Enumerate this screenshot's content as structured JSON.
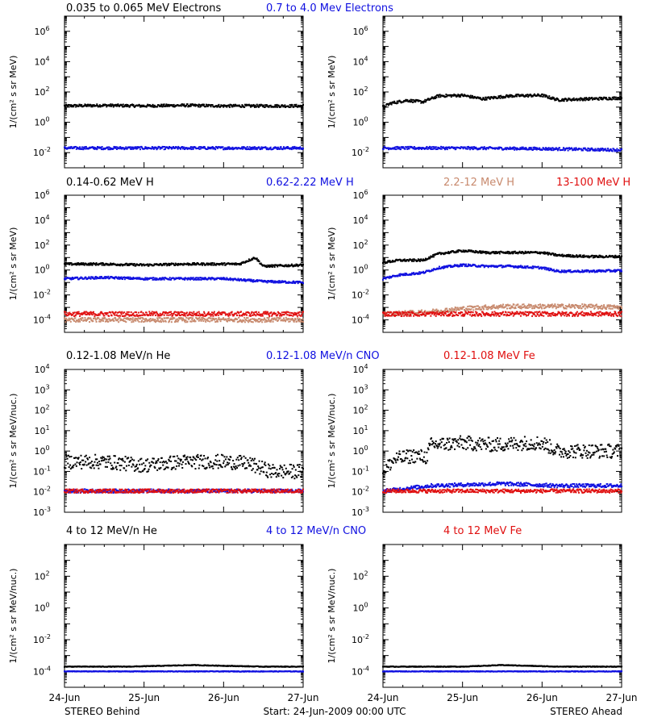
{
  "footer": {
    "left": "STEREO Behind",
    "center": "Start: 24-Jun-2009 00:00 UTC",
    "right": "STEREO Ahead"
  },
  "x_axis": {
    "ticks": [
      "24-Jun",
      "25-Jun",
      "26-Jun",
      "27-Jun"
    ],
    "range_days": [
      0,
      3
    ]
  },
  "colors": {
    "black": "#000000",
    "blue": "#1010e0",
    "tan": "#c88a6e",
    "red": "#e01010"
  },
  "chart_data": [
    {
      "type": "scatter",
      "row": 1,
      "ylabel": "1/(cm² s sr MeV)",
      "y_scale": "log",
      "ylim_exp": [
        -3,
        7
      ],
      "ytick_exps": [
        -2,
        0,
        2,
        4,
        6
      ],
      "legend": [
        {
          "text": "0.035 to 0.065 MeV Electrons",
          "color": "black"
        },
        {
          "text": "0.7 to 4.0 Mev Electrons",
          "color": "blue"
        }
      ],
      "panels": [
        {
          "spacecraft": "Behind",
          "series": [
            {
              "color": "black",
              "points": [
                [
                  0,
                  12
                ],
                [
                  0.5,
                  13
                ],
                [
                  1,
                  12
                ],
                [
                  1.5,
                  13
                ],
                [
                  2,
                  12
                ],
                [
                  2.5,
                  12
                ],
                [
                  3,
                  12
                ]
              ]
            },
            {
              "color": "blue",
              "points": [
                [
                  0,
                  0.02
                ],
                [
                  1,
                  0.02
                ],
                [
                  2,
                  0.02
                ],
                [
                  3,
                  0.02
                ]
              ]
            }
          ]
        },
        {
          "spacecraft": "Ahead",
          "series": [
            {
              "color": "black",
              "points": [
                [
                  0,
                  10
                ],
                [
                  0.1,
                  18
                ],
                [
                  0.3,
                  28
                ],
                [
                  0.5,
                  22
                ],
                [
                  0.7,
                  55
                ],
                [
                  1.0,
                  60
                ],
                [
                  1.25,
                  35
                ],
                [
                  1.6,
                  55
                ],
                [
                  2.0,
                  60
                ],
                [
                  2.2,
                  30
                ],
                [
                  2.6,
                  35
                ],
                [
                  3,
                  40
                ]
              ]
            },
            {
              "color": "blue",
              "points": [
                [
                  0,
                  0.02
                ],
                [
                  1,
                  0.02
                ],
                [
                  2,
                  0.018
                ],
                [
                  3,
                  0.015
                ]
              ]
            }
          ]
        }
      ]
    },
    {
      "type": "scatter",
      "row": 2,
      "ylabel": "1/(cm² s sr MeV)",
      "y_scale": "log",
      "ylim_exp": [
        -5,
        6
      ],
      "ytick_exps": [
        -4,
        -2,
        0,
        2,
        4,
        6
      ],
      "legend": [
        {
          "text": "0.14-0.62 MeV H",
          "color": "black"
        },
        {
          "text": "0.62-2.22 MeV H",
          "color": "blue"
        },
        {
          "text": "2.2-12 MeV H",
          "color": "tan"
        },
        {
          "text": "13-100 MeV H",
          "color": "red"
        }
      ],
      "panels": [
        {
          "spacecraft": "Behind",
          "series": [
            {
              "color": "black",
              "points": [
                [
                  0,
                  3
                ],
                [
                  0.5,
                  3
                ],
                [
                  1,
                  2.5
                ],
                [
                  1.5,
                  3
                ],
                [
                  2,
                  3
                ],
                [
                  2.2,
                  3
                ],
                [
                  2.4,
                  10
                ],
                [
                  2.5,
                  2
                ],
                [
                  3,
                  2.5
                ]
              ]
            },
            {
              "color": "blue",
              "points": [
                [
                  0,
                  0.2
                ],
                [
                  0.5,
                  0.25
                ],
                [
                  1,
                  0.2
                ],
                [
                  1.5,
                  0.2
                ],
                [
                  2,
                  0.2
                ],
                [
                  2.5,
                  0.12
                ],
                [
                  3,
                  0.1
                ]
              ]
            },
            {
              "color": "tan",
              "points": [
                [
                  0,
                  0.0001
                ],
                [
                  1,
                  0.0001
                ],
                [
                  2,
                  0.0001
                ],
                [
                  3,
                  0.0001
                ]
              ]
            },
            {
              "color": "red",
              "points": [
                [
                  0,
                  0.0003
                ],
                [
                  1,
                  0.0003
                ],
                [
                  2,
                  0.0003
                ],
                [
                  3,
                  0.0003
                ]
              ]
            }
          ]
        },
        {
          "spacecraft": "Ahead",
          "series": [
            {
              "color": "black",
              "points": [
                [
                  0,
                  4
                ],
                [
                  0.2,
                  6
                ],
                [
                  0.5,
                  6
                ],
                [
                  0.7,
                  20
                ],
                [
                  1.0,
                  35
                ],
                [
                  1.3,
                  25
                ],
                [
                  1.6,
                  25
                ],
                [
                  2.0,
                  25
                ],
                [
                  2.2,
                  15
                ],
                [
                  2.6,
                  12
                ],
                [
                  3,
                  12
                ]
              ]
            },
            {
              "color": "blue",
              "points": [
                [
                  0,
                  0.2
                ],
                [
                  0.2,
                  0.4
                ],
                [
                  0.5,
                  0.6
                ],
                [
                  0.7,
                  1.5
                ],
                [
                  1.0,
                  2.5
                ],
                [
                  1.3,
                  2
                ],
                [
                  1.6,
                  2
                ],
                [
                  2.0,
                  1.5
                ],
                [
                  2.2,
                  0.8
                ],
                [
                  2.6,
                  0.8
                ],
                [
                  3,
                  0.9
                ]
              ]
            },
            {
              "color": "tan",
              "points": [
                [
                  0,
                  0.0003
                ],
                [
                  0.5,
                  0.0004
                ],
                [
                  1.0,
                  0.0008
                ],
                [
                  1.5,
                  0.0012
                ],
                [
                  2.0,
                  0.0012
                ],
                [
                  2.5,
                  0.0012
                ],
                [
                  3,
                  0.001
                ]
              ]
            },
            {
              "color": "red",
              "points": [
                [
                  0,
                  0.0003
                ],
                [
                  1,
                  0.0003
                ],
                [
                  2,
                  0.0003
                ],
                [
                  3,
                  0.0003
                ]
              ]
            }
          ]
        }
      ]
    },
    {
      "type": "scatter",
      "row": 3,
      "ylabel": "1/(cm² s sr MeV/nuc.)",
      "y_scale": "log",
      "ylim_exp": [
        -3,
        4
      ],
      "ytick_exps": [
        -3,
        -2,
        -1,
        0,
        1,
        2,
        3,
        4
      ],
      "legend": [
        {
          "text": "0.12-1.08 MeV/n He",
          "color": "black"
        },
        {
          "text": "0.12-1.08 MeV/n CNO",
          "color": "blue"
        },
        {
          "text": "0.12-1.08 MeV Fe",
          "color": "red"
        }
      ],
      "panels": [
        {
          "spacecraft": "Behind",
          "series": [
            {
              "color": "black",
              "points": [
                [
                  0,
                  0.3
                ],
                [
                  0.5,
                  0.3
                ],
                [
                  1,
                  0.2
                ],
                [
                  1.5,
                  0.3
                ],
                [
                  2,
                  0.3
                ],
                [
                  2.3,
                  0.25
                ],
                [
                  2.6,
                  0.1
                ],
                [
                  3,
                  0.1
                ]
              ]
            },
            {
              "color": "blue",
              "points": [
                [
                  0,
                  0.011
                ],
                [
                  1,
                  0.011
                ],
                [
                  2,
                  0.011
                ],
                [
                  3,
                  0.011
                ]
              ]
            },
            {
              "color": "red",
              "points": [
                [
                  0,
                  0.011
                ],
                [
                  1,
                  0.011
                ],
                [
                  2,
                  0.011
                ],
                [
                  3,
                  0.011
                ]
              ]
            }
          ]
        },
        {
          "spacecraft": "Ahead",
          "series": [
            {
              "color": "black",
              "points": [
                [
                  0,
                  0.1
                ],
                [
                  0.15,
                  0.4
                ],
                [
                  0.4,
                  0.6
                ],
                [
                  0.55,
                  0.5
                ],
                [
                  0.6,
                  2
                ],
                [
                  1.0,
                  2.5
                ],
                [
                  1.4,
                  2
                ],
                [
                  1.8,
                  2.5
                ],
                [
                  2.0,
                  2.5
                ],
                [
                  2.2,
                  1.0
                ],
                [
                  2.6,
                  1.0
                ],
                [
                  3,
                  1.0
                ]
              ]
            },
            {
              "color": "blue",
              "points": [
                [
                  0,
                  0.011
                ],
                [
                  0.6,
                  0.02
                ],
                [
                  1.5,
                  0.025
                ],
                [
                  2.2,
                  0.02
                ],
                [
                  3,
                  0.02
                ]
              ]
            },
            {
              "color": "red",
              "points": [
                [
                  0,
                  0.011
                ],
                [
                  1,
                  0.011
                ],
                [
                  2,
                  0.011
                ],
                [
                  3,
                  0.011
                ]
              ]
            }
          ]
        }
      ]
    },
    {
      "type": "scatter",
      "row": 4,
      "ylabel": "1/(cm² s sr MeV/nuc.)",
      "y_scale": "log",
      "ylim_exp": [
        -5,
        4
      ],
      "ytick_exps": [
        -4,
        -2,
        0,
        2
      ],
      "legend": [
        {
          "text": "4 to 12 MeV/n He",
          "color": "black"
        },
        {
          "text": "4 to 12 MeV/n CNO",
          "color": "blue"
        },
        {
          "text": "4 to 12 MeV Fe",
          "color": "red"
        }
      ],
      "panels": [
        {
          "spacecraft": "Behind",
          "series": [
            {
              "color": "black",
              "points": [
                [
                  0,
                  0.0002
                ],
                [
                  0.8,
                  0.0002
                ],
                [
                  1.6,
                  0.00025
                ],
                [
                  2.5,
                  0.0002
                ]
              ]
            },
            {
              "color": "blue",
              "points": [
                [
                  0,
                  0.0001
                ],
                [
                  1,
                  0.0001
                ],
                [
                  2,
                  0.0001
                ],
                [
                  3,
                  0.0001
                ]
              ]
            }
          ]
        },
        {
          "spacecraft": "Ahead",
          "series": [
            {
              "color": "black",
              "points": [
                [
                  0.2,
                  0.0002
                ],
                [
                  1.0,
                  0.0002
                ],
                [
                  1.5,
                  0.00025
                ],
                [
                  2.2,
                  0.0002
                ]
              ]
            },
            {
              "color": "blue",
              "points": [
                [
                  0,
                  0.0001
                ],
                [
                  1,
                  0.0001
                ],
                [
                  2,
                  0.0001
                ],
                [
                  3,
                  0.0001
                ]
              ]
            }
          ]
        }
      ]
    }
  ]
}
